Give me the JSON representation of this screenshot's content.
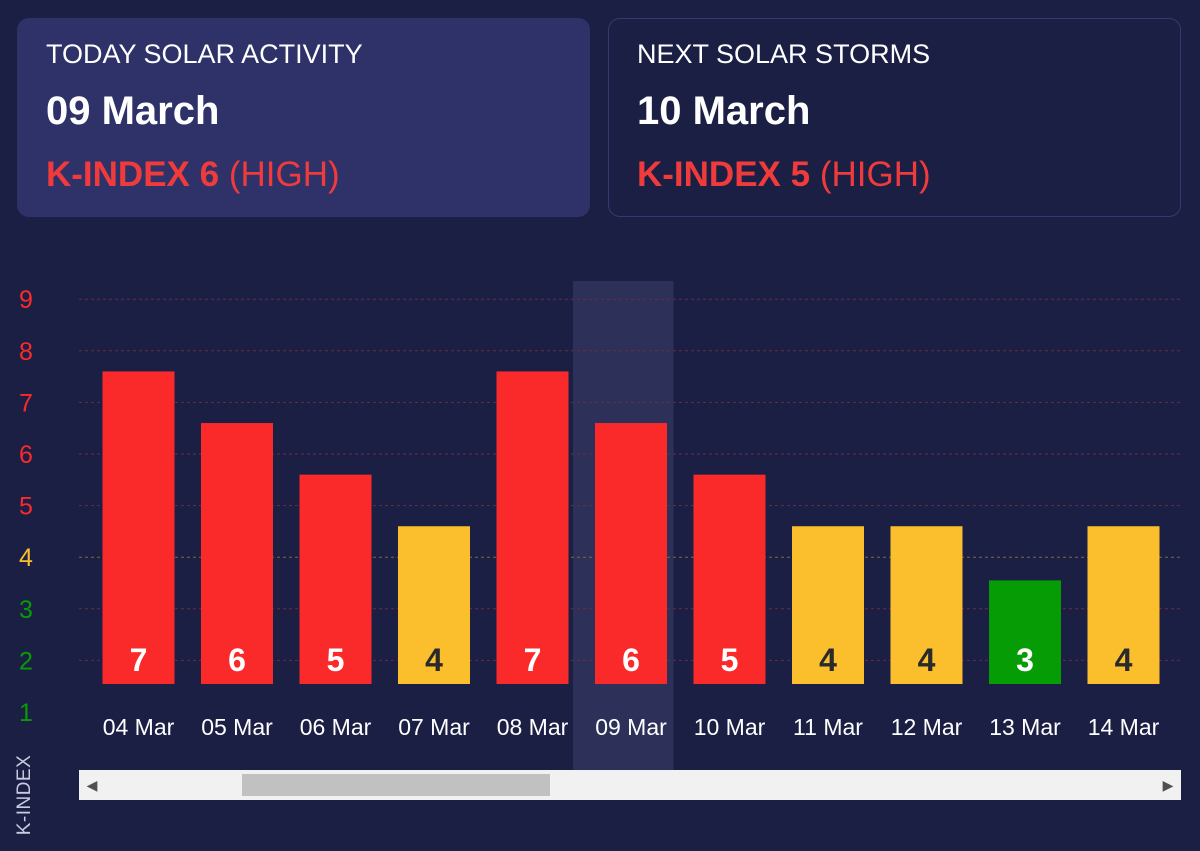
{
  "today_card": {
    "heading": "TODAY SOLAR ACTIVITY",
    "date": "09 March",
    "kp_value": "K-INDEX 6",
    "kp_level": " (HIGH)"
  },
  "next_card": {
    "heading": "NEXT SOLAR STORMS",
    "date": "10 March",
    "kp_value": "K-INDEX 5",
    "kp_level": " (HIGH)"
  },
  "colors": {
    "background": "#1b1f44",
    "high": "#fb2a2a",
    "moderate": "#fbbf2e",
    "low": "#069c06"
  },
  "chart_data": {
    "type": "bar",
    "title": "",
    "xlabel": "",
    "ylabel": "K-INDEX",
    "ylim": [
      1,
      9
    ],
    "y_ticks": [
      1,
      2,
      3,
      4,
      5,
      6,
      7,
      8,
      9
    ],
    "grid": true,
    "categories": [
      "04 Mar",
      "05 Mar",
      "06 Mar",
      "07 Mar",
      "08 Mar",
      "09 Mar",
      "10 Mar",
      "11 Mar",
      "12 Mar",
      "13 Mar",
      "14 Mar"
    ],
    "values": [
      7,
      6,
      5,
      4,
      7,
      6,
      5,
      4,
      4,
      3,
      4
    ],
    "bar_heights": [
      7.6,
      6.6,
      5.6,
      4.6,
      7.6,
      6.6,
      5.6,
      4.6,
      4.6,
      3.55,
      4.6
    ],
    "highlighted_category": "09 Mar",
    "data_labels": [
      "7",
      "6",
      "5",
      "4",
      "7",
      "6",
      "5",
      "4",
      "4",
      "3",
      "4"
    ]
  },
  "scrollbar": {
    "left_arrow": "◀",
    "right_arrow": "▶"
  }
}
